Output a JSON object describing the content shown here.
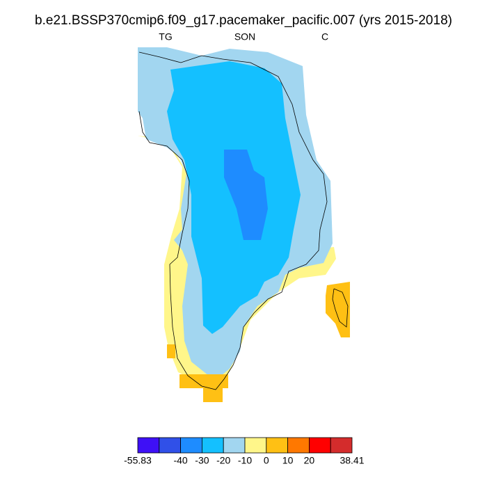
{
  "title": "b.e21.BSSP370cmip6.f09_g17.pacemaker_pacific.007 (yrs 2015-2018)",
  "left_label": "TG",
  "center_label": "SON",
  "right_label": "C",
  "colorbar": {
    "colors": [
      "#3e10f6",
      "#3050e8",
      "#1e8cff",
      "#14c0ff",
      "#a2d6f0",
      "#fff68a",
      "#ffc014",
      "#ff7800",
      "#ff0000",
      "#d42c2c"
    ],
    "levels": [
      -55.83,
      null,
      -40,
      -30,
      -20,
      -10,
      0,
      10,
      20,
      null,
      38.41
    ]
  }
}
